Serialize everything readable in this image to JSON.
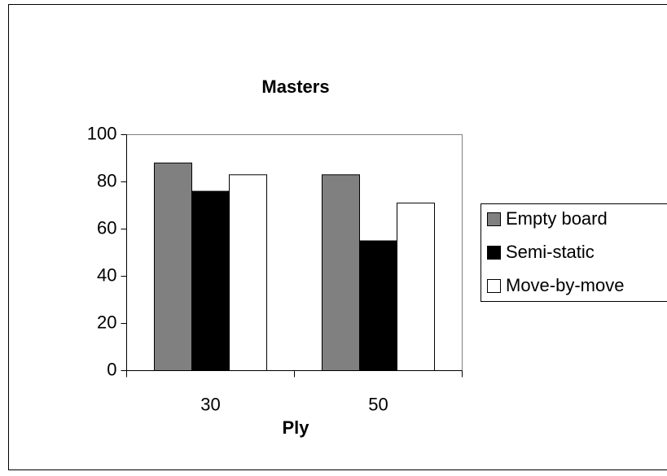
{
  "chart_data": {
    "type": "bar",
    "title": "Masters",
    "x_label": "Ply",
    "categories": [
      "30",
      "50"
    ],
    "series": [
      {
        "name": "Empty board",
        "color": "#808080",
        "values": [
          88,
          83
        ]
      },
      {
        "name": "Semi-static",
        "color": "#000000",
        "values": [
          76,
          55
        ]
      },
      {
        "name": "Move-by-move",
        "color": "#ffffff",
        "values": [
          83,
          71
        ]
      }
    ],
    "ylim": [
      0,
      100
    ],
    "yticks": [
      0,
      20,
      40,
      60,
      80,
      100
    ],
    "grid": false,
    "legend": "right"
  }
}
